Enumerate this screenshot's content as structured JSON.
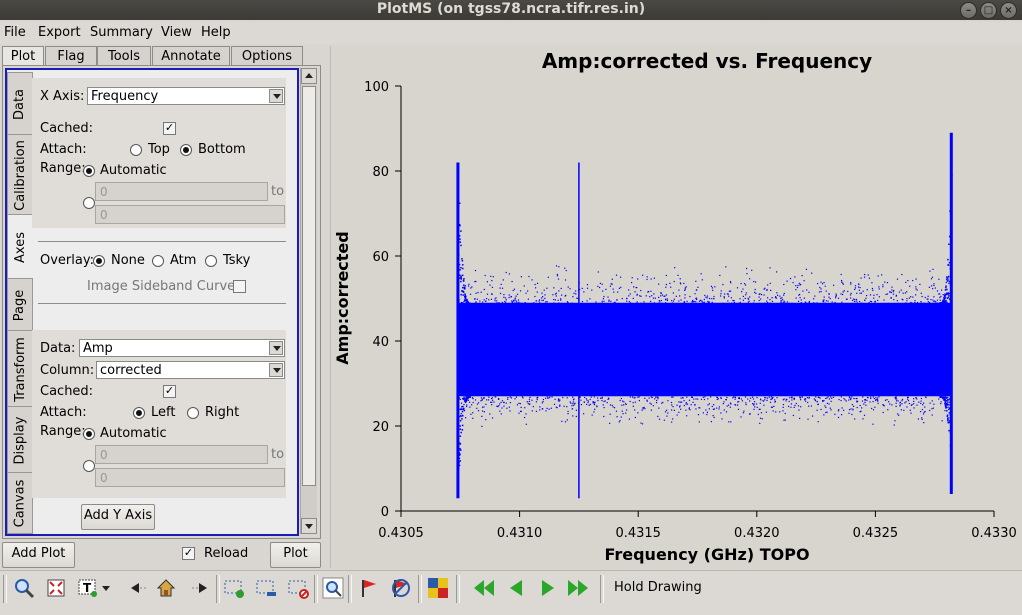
{
  "window": {
    "title": "PlotMS (on tgss78.ncra.tifr.res.in)"
  },
  "menubar": [
    "File",
    "Export",
    "Summary",
    "View",
    "Help"
  ],
  "top_tabs": [
    {
      "label": "Plot",
      "active": true
    },
    {
      "label": "Flag",
      "active": false
    },
    {
      "label": "Tools",
      "active": false
    },
    {
      "label": "Annotate",
      "active": false
    },
    {
      "label": "Options",
      "active": false
    }
  ],
  "side_tabs": [
    "Data",
    "Calibration",
    "Axes",
    "Page",
    "Transform",
    "Display",
    "Canvas"
  ],
  "side_tab_active": "Axes",
  "x_axis": {
    "label": "X Axis:",
    "value": "Frequency",
    "cached_label": "Cached:",
    "cached": true,
    "attach_label": "Attach:",
    "attach_options": [
      "Top",
      "Bottom"
    ],
    "attach_selected": "Bottom",
    "range_label": "Range:",
    "range_auto_label": "Automatic",
    "range_min": "0",
    "range_to": "to",
    "range_max": "0"
  },
  "overlay": {
    "label": "Overlay:",
    "options": [
      "None",
      "Atm",
      "Tsky"
    ],
    "selected": "None",
    "sideband_label": "Image Sideband Curve:"
  },
  "y_axis": {
    "data_label": "Data:",
    "data_value": "Amp",
    "column_label": "Column:",
    "column_value": "corrected",
    "cached_label": "Cached:",
    "cached": true,
    "attach_label": "Attach:",
    "attach_options": [
      "Left",
      "Right"
    ],
    "attach_selected": "Left",
    "range_label": "Range:",
    "range_auto_label": "Automatic",
    "range_min": "0",
    "range_to": "to",
    "range_max": "0",
    "add_button": "Add Y Axis"
  },
  "bottom_left": {
    "add_plot": "Add Plot",
    "reload_label": "Reload",
    "reload_checked": true,
    "plot_button": "Plot"
  },
  "toolbar": {
    "icons": [
      "zoom-icon",
      "zoom-fit-icon",
      "text-annotate-icon",
      "dropdown-arrow-icon",
      "step-back-icon",
      "home-icon",
      "step-forward-icon",
      "select-add-icon",
      "select-subtract-icon",
      "select-clear-icon",
      "locate-icon",
      "flag-icon",
      "unflag-icon",
      "iteration-grid-icon",
      "first-icon",
      "previous-icon",
      "next-icon",
      "last-icon"
    ],
    "hold_drawing": "Hold Drawing"
  },
  "colors": {
    "points": "#0000ff",
    "panel_border": "#1b1bb5",
    "plot_bg": "#d8d4ce"
  },
  "chart_data": {
    "type": "scatter",
    "title": "Amp:corrected vs. Frequency",
    "xlabel": "Frequency (GHz) TOPO",
    "ylabel": "Amp:corrected",
    "xlim": [
      0.4305,
      0.433
    ],
    "ylim": [
      0,
      100
    ],
    "xticks": [
      "0.4305",
      "0.4310",
      "0.4315",
      "0.4320",
      "0.4325",
      "0.4330"
    ],
    "yticks": [
      "0",
      "20",
      "40",
      "60",
      "80",
      "100"
    ],
    "series": [
      {
        "x_range": [
          0.43074,
          0.43282
        ],
        "band_core": [
          27,
          49
        ],
        "band_outlier_edges": [
          22,
          55
        ],
        "edge_spikes": [
          {
            "x": 0.43074,
            "ymin": 3,
            "ymax": 82
          },
          {
            "x": 0.43282,
            "ymin": 4,
            "ymax": 89
          },
          {
            "x": 0.43125,
            "ymin": 3,
            "ymax": 82
          }
        ]
      }
    ],
    "grid": false
  }
}
